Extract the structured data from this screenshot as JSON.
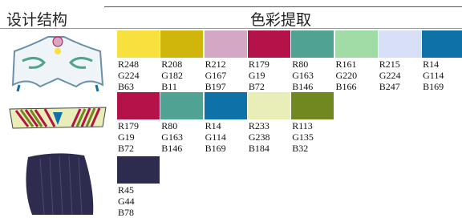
{
  "header": {
    "structure": "设计结构",
    "colors": "色彩提取"
  },
  "rows": [
    {
      "swatches": [
        {
          "color": "#f8e03f",
          "r": "R248",
          "g": "G224",
          "b": "B63"
        },
        {
          "color": "#d0b60b",
          "r": "R208",
          "g": "G182",
          "b": "B11"
        },
        {
          "color": "#d4a7c5",
          "r": "R212",
          "g": "G167",
          "b": "B197"
        },
        {
          "color": "#b31348",
          "r": "R179",
          "g": "G19",
          "b": "B72"
        },
        {
          "color": "#50a392",
          "r": "R80",
          "g": "G163",
          "b": "B146"
        },
        {
          "color": "#a1dca6",
          "r": "R161",
          "g": "G220",
          "b": "B166"
        },
        {
          "color": "#d7e0f7",
          "r": "R215",
          "g": "G224",
          "b": "B247"
        },
        {
          "color": "#0e72a9",
          "r": "R14",
          "g": "G114",
          "b": "B169"
        }
      ]
    },
    {
      "swatches": [
        {
          "color": "#b31348",
          "r": "R179",
          "g": "G19",
          "b": "B72"
        },
        {
          "color": "#50a392",
          "r": "R80",
          "g": "G163",
          "b": "B146"
        },
        {
          "color": "#0e72a9",
          "r": "R14",
          "g": "G114",
          "b": "B169"
        },
        {
          "color": "#e9eeb8",
          "r": "R233",
          "g": "G238",
          "b": "B184"
        },
        {
          "color": "#718720",
          "r": "R113",
          "g": "G135",
          "b": "B32"
        }
      ]
    },
    {
      "swatches": [
        {
          "color": "#2d2c4e",
          "r": "R45",
          "g": "G44",
          "b": "B78"
        }
      ]
    }
  ]
}
